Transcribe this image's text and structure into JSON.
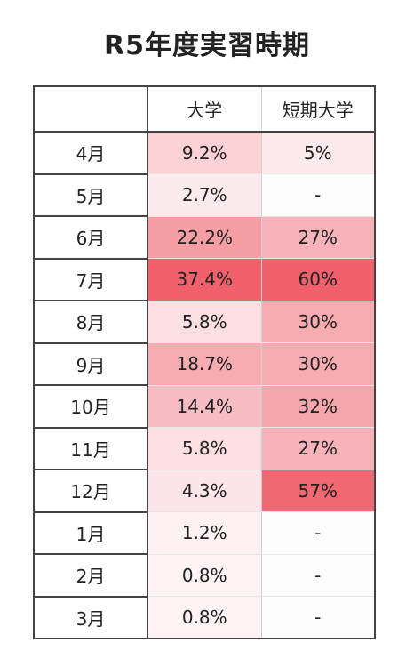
{
  "chart_data": {
    "type": "table",
    "title": "R5年度実習時期",
    "columns": [
      "",
      "大学",
      "短期大学"
    ],
    "rows": [
      {
        "month": "4月",
        "university": "9.2%",
        "junior_college": "5%",
        "university_value": 9.2,
        "junior_college_value": 5
      },
      {
        "month": "5月",
        "university": "2.7%",
        "junior_college": "-",
        "university_value": 2.7,
        "junior_college_value": null
      },
      {
        "month": "6月",
        "university": "22.2%",
        "junior_college": "27%",
        "university_value": 22.2,
        "junior_college_value": 27
      },
      {
        "month": "7月",
        "university": "37.4%",
        "junior_college": "60%",
        "university_value": 37.4,
        "junior_college_value": 60
      },
      {
        "month": "8月",
        "university": "5.8%",
        "junior_college": "30%",
        "university_value": 5.8,
        "junior_college_value": 30
      },
      {
        "month": "9月",
        "university": "18.7%",
        "junior_college": "30%",
        "university_value": 18.7,
        "junior_college_value": 30
      },
      {
        "month": "10月",
        "university": "14.4%",
        "junior_college": "32%",
        "university_value": 14.4,
        "junior_college_value": 32
      },
      {
        "month": "11月",
        "university": "5.8%",
        "junior_college": "27%",
        "university_value": 5.8,
        "junior_college_value": 27
      },
      {
        "month": "12月",
        "university": "4.3%",
        "junior_college": "57%",
        "university_value": 4.3,
        "junior_college_value": 57
      },
      {
        "month": "1月",
        "university": "1.2%",
        "junior_college": "-",
        "university_value": 1.2,
        "junior_college_value": null
      },
      {
        "month": "2月",
        "university": "0.8%",
        "junior_college": "-",
        "university_value": 0.8,
        "junior_college_value": null
      },
      {
        "month": "3月",
        "university": "0.8%",
        "junior_college": "-",
        "university_value": 0.8,
        "junior_college_value": null
      }
    ],
    "color_scale": {
      "low": "#fdf6f8",
      "high": "#f0616b"
    }
  }
}
